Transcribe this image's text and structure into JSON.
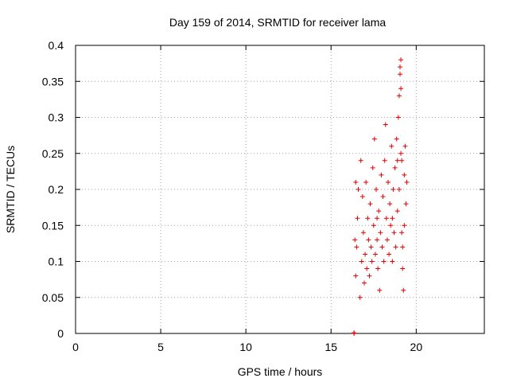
{
  "chart_data": {
    "type": "scatter",
    "title": "Day 159 of 2014, SRMTID for receiver lama",
    "xlabel": "GPS time / hours",
    "ylabel": "SRMTID / TECUs",
    "xlim": [
      0,
      24
    ],
    "ylim": [
      0,
      0.4
    ],
    "xticks": [
      0,
      5,
      10,
      15,
      20
    ],
    "xtick_labels": [
      "0",
      "5",
      "10",
      "15",
      "20"
    ],
    "yticks": [
      0,
      0.05,
      0.1,
      0.15,
      0.2,
      0.25,
      0.3,
      0.35,
      0.4
    ],
    "ytick_labels": [
      "0",
      "0.05",
      "0.1",
      "0.15",
      "0.2",
      "0.25",
      "0.3",
      "0.35",
      "0.4"
    ],
    "grid": true,
    "marker": "plus",
    "color": "#e00000",
    "series": [
      {
        "name": "SRMTID",
        "points": [
          [
            16.35,
            0.001
          ],
          [
            16.35,
            0.0
          ],
          [
            16.4,
            0.13
          ],
          [
            16.45,
            0.08
          ],
          [
            16.5,
            0.12
          ],
          [
            16.55,
            0.16
          ],
          [
            16.6,
            0.2
          ],
          [
            16.45,
            0.21
          ],
          [
            16.7,
            0.05
          ],
          [
            16.75,
            0.24
          ],
          [
            16.8,
            0.1
          ],
          [
            16.85,
            0.19
          ],
          [
            16.9,
            0.14
          ],
          [
            16.95,
            0.07
          ],
          [
            17.0,
            0.11
          ],
          [
            17.05,
            0.21
          ],
          [
            17.1,
            0.09
          ],
          [
            17.15,
            0.16
          ],
          [
            17.2,
            0.13
          ],
          [
            17.25,
            0.08
          ],
          [
            17.3,
            0.18
          ],
          [
            17.35,
            0.12
          ],
          [
            17.4,
            0.1
          ],
          [
            17.45,
            0.23
          ],
          [
            17.5,
            0.15
          ],
          [
            17.55,
            0.27
          ],
          [
            17.6,
            0.11
          ],
          [
            17.65,
            0.2
          ],
          [
            17.7,
            0.13
          ],
          [
            17.75,
            0.09
          ],
          [
            17.8,
            0.17
          ],
          [
            17.85,
            0.06
          ],
          [
            17.9,
            0.14
          ],
          [
            17.95,
            0.22
          ],
          [
            18.0,
            0.12
          ],
          [
            18.05,
            0.19
          ],
          [
            18.1,
            0.1
          ],
          [
            18.15,
            0.24
          ],
          [
            18.2,
            0.29
          ],
          [
            18.25,
            0.16
          ],
          [
            18.3,
            0.13
          ],
          [
            18.35,
            0.21
          ],
          [
            18.4,
            0.11
          ],
          [
            18.45,
            0.18
          ],
          [
            18.5,
            0.15
          ],
          [
            18.55,
            0.26
          ],
          [
            18.6,
            0.1
          ],
          [
            18.65,
            0.2
          ],
          [
            18.7,
            0.14
          ],
          [
            18.75,
            0.23
          ],
          [
            18.8,
            0.12
          ],
          [
            18.85,
            0.27
          ],
          [
            18.9,
            0.17
          ],
          [
            18.95,
            0.3
          ],
          [
            19.0,
            0.33
          ],
          [
            19.05,
            0.36
          ],
          [
            19.1,
            0.38
          ],
          [
            19.15,
            0.14
          ],
          [
            19.2,
            0.09
          ],
          [
            19.25,
            0.06
          ],
          [
            19.3,
            0.22
          ],
          [
            19.35,
            0.26
          ],
          [
            19.4,
            0.18
          ],
          [
            19.45,
            0.21
          ],
          [
            19.3,
            0.15
          ],
          [
            19.2,
            0.12
          ],
          [
            19.1,
            0.25
          ],
          [
            19.0,
            0.2
          ],
          [
            18.9,
            0.24
          ],
          [
            19.1,
            0.34
          ],
          [
            19.05,
            0.37
          ],
          [
            19.15,
            0.24
          ],
          [
            18.6,
            0.16
          ],
          [
            17.7,
            0.16
          ]
        ]
      }
    ]
  }
}
